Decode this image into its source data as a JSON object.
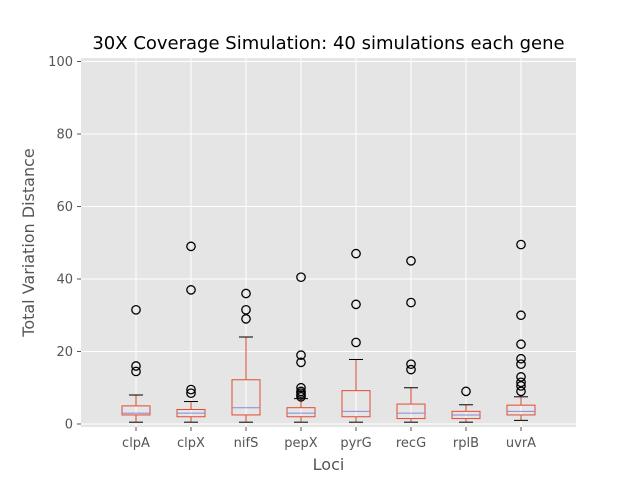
{
  "chart_data": {
    "type": "boxplot",
    "title": "30X Coverage Simulation: 40 simulations each gene",
    "xlabel": "Loci",
    "ylabel": "Total Variation Distance",
    "ylim": [
      0,
      100
    ],
    "yticks": [
      0,
      20,
      40,
      60,
      80,
      100
    ],
    "grid": true,
    "categories": [
      "clpA",
      "clpX",
      "nifS",
      "pepX",
      "pyrG",
      "recG",
      "rplB",
      "uvrA"
    ],
    "boxes": [
      {
        "min": 0.5,
        "q1": 2.5,
        "median": 3.0,
        "q3": 5.0,
        "max": 8.0,
        "outliers": [
          14.5,
          16.0,
          31.5
        ]
      },
      {
        "min": 0.5,
        "q1": 2.0,
        "median": 3.0,
        "q3": 4.0,
        "max": 6.2,
        "outliers": [
          8.5,
          9.5,
          37.0,
          49.0
        ]
      },
      {
        "min": 0.5,
        "q1": 2.5,
        "median": 4.5,
        "q3": 12.2,
        "max": 24.0,
        "outliers": [
          29.0,
          31.5,
          36.0
        ]
      },
      {
        "min": 0.5,
        "q1": 2.0,
        "median": 3.0,
        "q3": 4.5,
        "max": 7.0,
        "outliers": [
          7.5,
          8.0,
          8.5,
          9.0,
          10.0,
          17.0,
          19.0,
          40.5
        ]
      },
      {
        "min": 0.5,
        "q1": 2.0,
        "median": 3.5,
        "q3": 9.2,
        "max": 17.8,
        "outliers": [
          22.5,
          33.0,
          47.0
        ]
      },
      {
        "min": 0.5,
        "q1": 1.5,
        "median": 3.0,
        "q3": 5.5,
        "max": 10.0,
        "outliers": [
          15.0,
          16.5,
          33.5,
          45.0
        ]
      },
      {
        "min": 0.5,
        "q1": 1.5,
        "median": 2.5,
        "q3": 3.5,
        "max": 5.3,
        "outliers": [
          9.0
        ]
      },
      {
        "min": 1.0,
        "q1": 2.5,
        "median": 3.5,
        "q3": 5.2,
        "max": 7.5,
        "outliers": [
          9.0,
          10.5,
          11.5,
          13.0,
          16.5,
          18.0,
          22.0,
          30.0,
          49.5
        ]
      }
    ],
    "colors": {
      "plot_bg": "#e5e5e5",
      "grid": "#ffffff",
      "box": "#e24a33",
      "median": "#8a88d6",
      "whisker": "#000000",
      "outlier": "#000000",
      "text": "#555555",
      "title": "#000000"
    }
  }
}
